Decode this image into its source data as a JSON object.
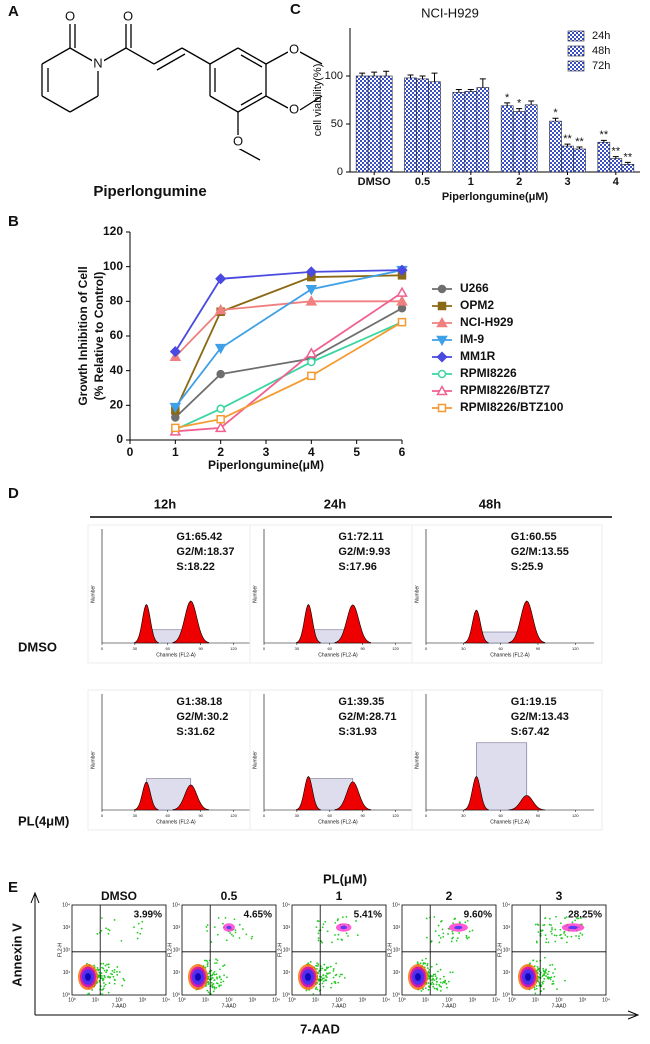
{
  "panel_labels": [
    "A",
    "B",
    "C",
    "D",
    "E"
  ],
  "structure": {
    "name": "Piperlongumine",
    "atoms": [
      "O",
      "N",
      "O",
      "O",
      "O",
      "O"
    ]
  },
  "chart_data": [
    {
      "type": "bar",
      "title": "NCI-H929",
      "x_label": "Piperlongumine(μM)",
      "y_label": "cell viability(%)",
      "categories": [
        "DMSO",
        "0.5",
        "1",
        "2",
        "3",
        "4"
      ],
      "ylim": [
        0,
        150
      ],
      "yticks": [
        0,
        50,
        100
      ],
      "legend": "top-right",
      "series": [
        {
          "name": "24h",
          "color": "#3a4fc4",
          "values": [
            100,
            98,
            83,
            69,
            53,
            31
          ],
          "errors": [
            3,
            3,
            3,
            3,
            3,
            2
          ],
          "significance": [
            null,
            null,
            null,
            "*",
            "*",
            "**"
          ]
        },
        {
          "name": "48h",
          "color": "#3a4fc4",
          "values": [
            100,
            97,
            84,
            63,
            27,
            14
          ],
          "errors": [
            4,
            3,
            2,
            3,
            2,
            2
          ],
          "significance": [
            null,
            null,
            null,
            "*",
            "**",
            "**"
          ]
        },
        {
          "name": "72h",
          "color": "#3a4fc4",
          "values": [
            100,
            94,
            88,
            70,
            24,
            8
          ],
          "errors": [
            5,
            9,
            9,
            4,
            2,
            2
          ],
          "significance": [
            null,
            null,
            null,
            null,
            "**",
            "**"
          ]
        }
      ]
    },
    {
      "type": "line",
      "x_label": "Piperlongumine(μM)",
      "y_label": [
        "Growth Inhibition of Cell",
        "(% Relative to Control)"
      ],
      "x": [
        1,
        2,
        4,
        6
      ],
      "xlim": [
        0,
        6
      ],
      "xticks": [
        0,
        1,
        2,
        3,
        4,
        5,
        6
      ],
      "ylim": [
        0,
        120
      ],
      "yticks": [
        0,
        20,
        40,
        60,
        80,
        100,
        120
      ],
      "legend": "right",
      "series": [
        {
          "name": "U266",
          "color": "#6e6e6e",
          "marker": "circle",
          "values": [
            13,
            38,
            47,
            76
          ]
        },
        {
          "name": "OPM2",
          "color": "#8b6914",
          "marker": "square",
          "values": [
            17,
            74,
            94,
            95
          ]
        },
        {
          "name": "NCI-H929",
          "color": "#f08080",
          "marker": "triangle",
          "values": [
            48,
            75,
            80,
            80
          ]
        },
        {
          "name": "IM-9",
          "color": "#3ea0e6",
          "marker": "triangle-down",
          "values": [
            19,
            53,
            87,
            98
          ]
        },
        {
          "name": "MM1R",
          "color": "#4a4ae0",
          "marker": "diamond",
          "values": [
            51,
            93,
            97,
            98
          ]
        },
        {
          "name": "RPMI8226",
          "color": "#3ad6a0",
          "marker": "open-circle",
          "values": [
            6,
            18,
            45,
            68
          ]
        },
        {
          "name": "RPMI8226/BTZ7",
          "color": "#f06090",
          "marker": "open-triangle",
          "values": [
            5,
            7,
            50,
            85
          ]
        },
        {
          "name": "RPMI8226/BTZ100",
          "color": "#f59a30",
          "marker": "open-square",
          "values": [
            7,
            12,
            37,
            68
          ]
        }
      ]
    }
  ],
  "cell_cycle": {
    "times": [
      "12h",
      "24h",
      "48h"
    ],
    "rows": [
      "DMSO",
      "PL(4μM)"
    ],
    "x_label": "Channels (FL2-A)",
    "y_label": "Number",
    "xticks": [
      0,
      30,
      60,
      90,
      120
    ],
    "stats": [
      [
        [
          "G1:65.42",
          "G2/M:18.37",
          "S:18.22"
        ],
        [
          "G1:72.11",
          "G2/M:9.93",
          "S:17.96"
        ],
        [
          "G1:60.55",
          "G2/M:13.55",
          "S:25.9"
        ]
      ],
      [
        [
          "G1:38.18",
          "G2/M:30.2",
          "S:31.62"
        ],
        [
          "G1:39.35",
          "G2/M:28.71",
          "S:31.93"
        ],
        [
          "G1:19.15",
          "G2/M:13.43",
          "S:67.42"
        ]
      ]
    ]
  },
  "apoptosis": {
    "title": "PL(μM)",
    "y_label": "Annexin V",
    "x_label": "7-AAD",
    "panel_y_label": "FL2-H",
    "panel_x_label": "7-AAD",
    "ticks": [
      "10⁰",
      "10¹",
      "10²",
      "10³",
      "10⁴"
    ],
    "conditions": [
      "DMSO",
      "0.5",
      "1",
      "2",
      "3"
    ],
    "percents": [
      "3.99%",
      "4.65%",
      "5.41%",
      "9.60%",
      "28.25%"
    ]
  }
}
